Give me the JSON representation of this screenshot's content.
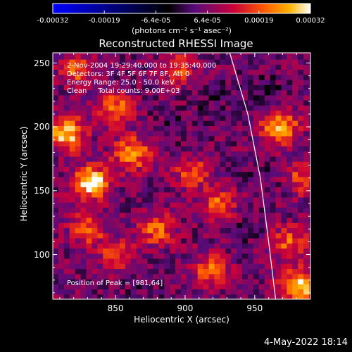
{
  "chart_data": {
    "type": "heatmap",
    "title": "Reconstructed RHESSI Image",
    "xlabel": "Heliocentric X (arcsec)",
    "ylabel": "Heliocentric Y (arcsec)",
    "x_ticks": [
      850,
      900,
      950
    ],
    "y_ticks": [
      100,
      150,
      200,
      250
    ],
    "xlim": [
      805,
      990
    ],
    "ylim": [
      65,
      258
    ],
    "colorbar": {
      "ticks": [
        "-0.00032",
        "-0.00019",
        "-6.4e-05",
        "6.4e-05",
        "0.00019",
        "0.00032"
      ],
      "units": "(photons cm⁻² s⁻¹ asec⁻²)",
      "range": [
        -0.00032,
        0.00032
      ]
    },
    "annotations": [
      "2-Nov-2004 19:29:40.000 to 19:35:40.000",
      "Detectors: 3F 4F 5F 6F 7F 8F, Att 0",
      "Energy Range: 25.0 - 50.0 keV",
      "Clean     Total counts: 9.00E+03"
    ],
    "peak_label": "Position of Peak = [981,64]",
    "limb_curve": {
      "x": [
        932,
        945,
        954,
        960,
        965
      ],
      "y": [
        258,
        210,
        160,
        110,
        65
      ]
    },
    "hot_spots": [
      {
        "x": 823,
        "y": 245,
        "level": 0.55
      },
      {
        "x": 815,
        "y": 195,
        "level": 0.9
      },
      {
        "x": 833,
        "y": 157,
        "level": 1.0
      },
      {
        "x": 850,
        "y": 215,
        "level": 0.6
      },
      {
        "x": 862,
        "y": 180,
        "level": 0.75
      },
      {
        "x": 880,
        "y": 120,
        "level": 0.6
      },
      {
        "x": 895,
        "y": 245,
        "level": 0.45
      },
      {
        "x": 905,
        "y": 165,
        "level": 0.5
      },
      {
        "x": 925,
        "y": 140,
        "level": 0.55
      },
      {
        "x": 918,
        "y": 88,
        "level": 0.55
      },
      {
        "x": 968,
        "y": 200,
        "level": 0.8
      },
      {
        "x": 983,
        "y": 160,
        "level": 0.45
      },
      {
        "x": 975,
        "y": 110,
        "level": 0.55
      },
      {
        "x": 982,
        "y": 75,
        "level": 0.95
      },
      {
        "x": 850,
        "y": 100,
        "level": 0.4
      },
      {
        "x": 830,
        "y": 120,
        "level": 0.5
      }
    ],
    "cold_spots": [
      {
        "x": 958,
        "y": 230,
        "level": 0.55
      },
      {
        "x": 920,
        "y": 220,
        "level": 0.45
      },
      {
        "x": 960,
        "y": 160,
        "level": 0.45
      },
      {
        "x": 890,
        "y": 200,
        "level": 0.35
      },
      {
        "x": 940,
        "y": 120,
        "level": 0.35
      },
      {
        "x": 870,
        "y": 80,
        "level": 0.3
      }
    ]
  },
  "footer_date": "4-May-2022 18:14",
  "colors": {
    "background": "#000000",
    "foreground": "#ffffff",
    "limb": "#ffffff"
  }
}
